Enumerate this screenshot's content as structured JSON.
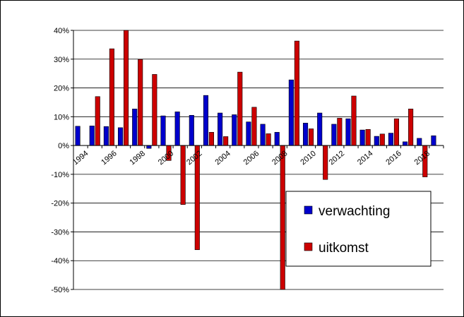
{
  "chart_data": {
    "type": "bar",
    "title": "",
    "xlabel": "",
    "ylabel": "",
    "ylim": [
      -50,
      40
    ],
    "ytick_step": 10,
    "y_unit": "%",
    "grid": "horizontal",
    "legend_position": "bottom-right",
    "categories": [
      "1994",
      "1995",
      "1996",
      "1997",
      "1998",
      "1999",
      "2000",
      "2001",
      "2002",
      "2003",
      "2004",
      "2005",
      "2006",
      "2007",
      "2008",
      "2009",
      "2010",
      "2011",
      "2012",
      "2013",
      "2014",
      "2015",
      "2016",
      "2017",
      "2018",
      "2019"
    ],
    "category_tick_labels": [
      "1994",
      "1996",
      "1998",
      "2000",
      "2002",
      "2004",
      "2006",
      "2008",
      "2010",
      "2012",
      "2014",
      "2016",
      "2018"
    ],
    "series": [
      {
        "name": "verwachting",
        "color": "#0000cc",
        "values": [
          6.7,
          6.8,
          6.6,
          6.2,
          12.7,
          -1,
          10.3,
          11.7,
          10.5,
          17.4,
          11.3,
          10.7,
          8.2,
          7.4,
          4.6,
          22.8,
          7.8,
          11.3,
          7.4,
          9.3,
          5.4,
          3.2,
          4.3,
          1.3,
          2.5,
          3.4
        ]
      },
      {
        "name": "uitkomst",
        "color": "#cc0000",
        "values": [
          0,
          17,
          33.6,
          40,
          29.9,
          24.7,
          -5.2,
          -20.5,
          -36.2,
          4.6,
          3.1,
          25.5,
          13.3,
          4.1,
          -50,
          36.3,
          5.8,
          -11.8,
          9.5,
          17.2,
          5.6,
          4,
          9.3,
          12.7,
          -10.9,
          0
        ]
      }
    ]
  }
}
